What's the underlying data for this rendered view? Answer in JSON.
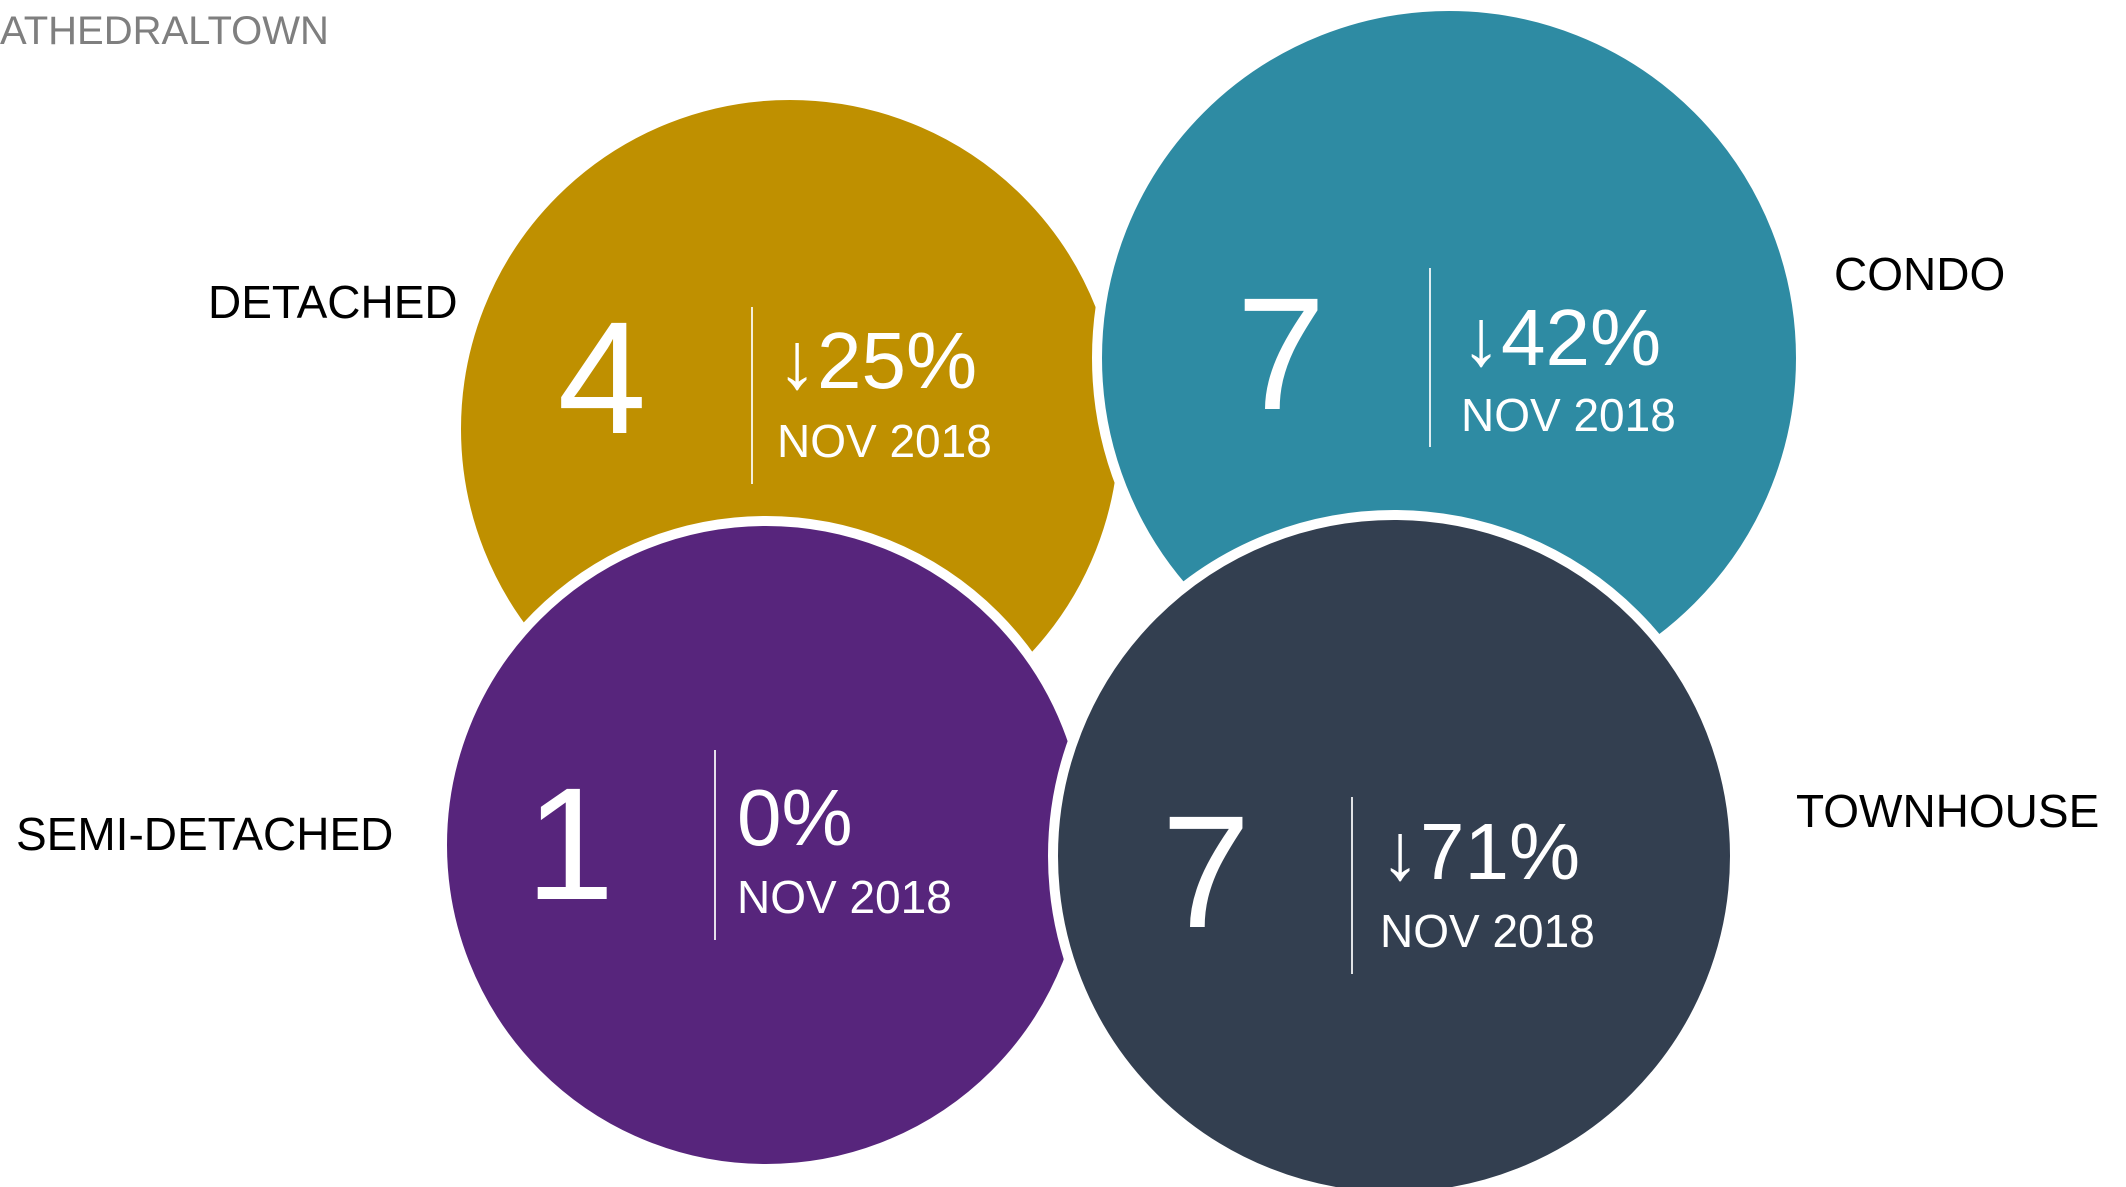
{
  "header": {
    "title": "ATHEDRALTOWN"
  },
  "items": [
    {
      "label": "DETACHED",
      "count": 4,
      "change": "↓25%",
      "period": "NOV 2018",
      "color": "#BF9000"
    },
    {
      "label": "CONDO",
      "count": 7,
      "change": "↓42%",
      "period": "NOV 2018",
      "color": "#2E8BA3"
    },
    {
      "label": "SEMI-DETACHED",
      "count": 1,
      "change": "0%",
      "period": "NOV 2018",
      "color": "#57257C"
    },
    {
      "label": "TOWNHOUSE",
      "count": 7,
      "change": "↓71%",
      "period": "NOV 2018",
      "color": "#333F50"
    }
  ]
}
